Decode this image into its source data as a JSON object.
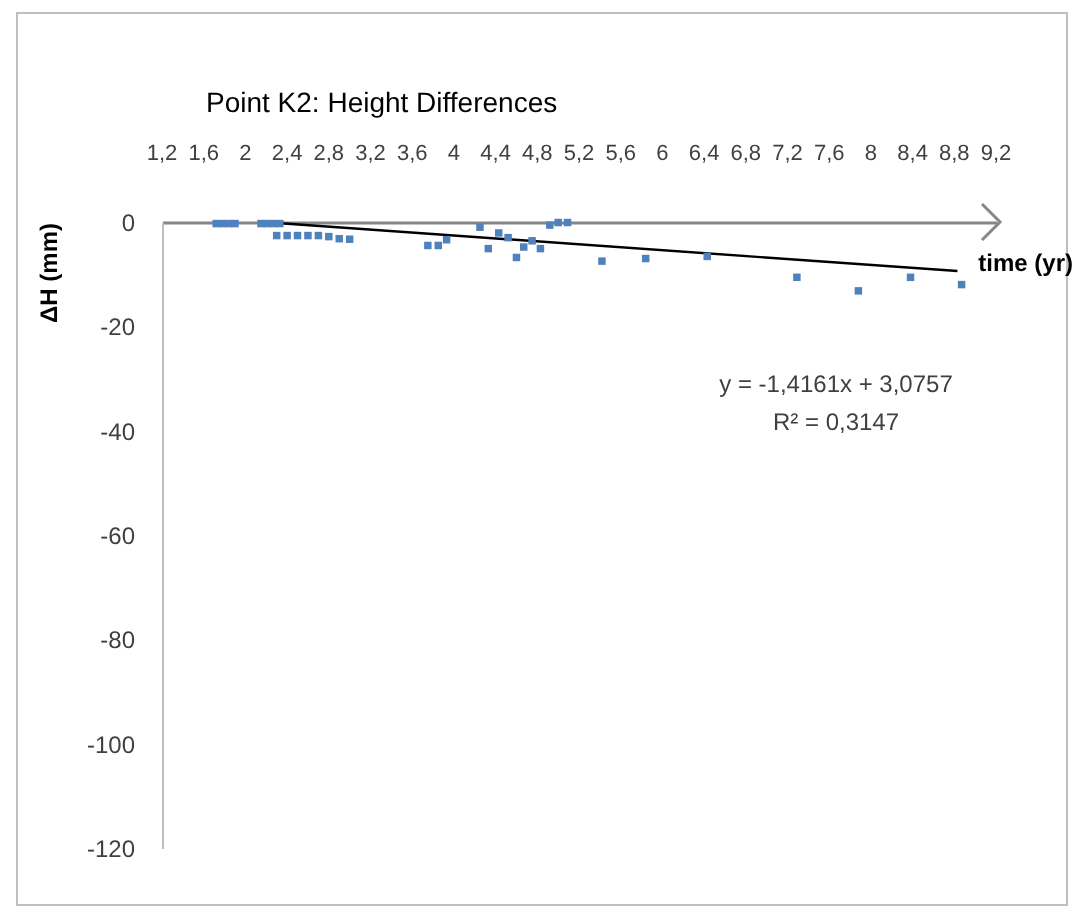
{
  "chart_data": {
    "type": "scatter",
    "title": "Point K2: Height Differences",
    "xlabel": "time (yr)",
    "ylabel": "ΔH (mm)",
    "xlim": [
      1.2,
      9.2
    ],
    "xticks": [
      {
        "value": 1.2,
        "label": "1,2"
      },
      {
        "value": 1.6,
        "label": "1,6"
      },
      2,
      {
        "value": 2.4,
        "label": "2,4"
      },
      {
        "value": 2.8,
        "label": "2,8"
      },
      {
        "value": 3.2,
        "label": "3,2"
      },
      {
        "value": 3.6,
        "label": "3,6"
      },
      4,
      {
        "value": 4.4,
        "label": "4,4"
      },
      {
        "value": 4.8,
        "label": "4,8"
      },
      {
        "value": 5.2,
        "label": "5,2"
      },
      {
        "value": 5.6,
        "label": "5,6"
      },
      6,
      {
        "value": 6.4,
        "label": "6,4"
      },
      {
        "value": 6.8,
        "label": "6,8"
      },
      {
        "value": 7.2,
        "label": "7,2"
      },
      {
        "value": 7.6,
        "label": "7,6"
      },
      8,
      {
        "value": 8.4,
        "label": "8,4"
      },
      {
        "value": 8.8,
        "label": "8,8"
      },
      {
        "value": 9.2,
        "label": "9,2"
      }
    ],
    "ylim": [
      -120,
      0
    ],
    "yticks": [
      -120,
      -100,
      -80,
      -60,
      -40,
      -20,
      0
    ],
    "grid": false,
    "series": [
      {
        "type": "scatter",
        "marker": "square",
        "color": "#4f81bd",
        "x": [
          1.72,
          1.78,
          1.84,
          1.9,
          2.15,
          2.21,
          2.27,
          2.33,
          2.3,
          2.4,
          2.5,
          2.6,
          2.7,
          2.8,
          2.9,
          3.0,
          3.75,
          3.85,
          3.93,
          4.25,
          4.33,
          4.43,
          4.52,
          4.6,
          4.67,
          4.75,
          4.83,
          4.92,
          5.0,
          5.09,
          5.42,
          5.84,
          6.43,
          7.29,
          7.88,
          8.38,
          8.87
        ],
        "values": [
          -0.3,
          -0.3,
          -0.3,
          -0.3,
          -0.3,
          -0.3,
          -0.3,
          -0.3,
          -2.6,
          -2.6,
          -2.6,
          -2.6,
          -2.6,
          -2.8,
          -3.2,
          -3.3,
          -4.5,
          -4.5,
          -3.4,
          -1.0,
          -5.1,
          -2.1,
          -3.0,
          -6.8,
          -4.8,
          -3.6,
          -5.1,
          -0.6,
          -0.1,
          -0.1,
          -7.5,
          -7.0,
          -6.6,
          -10.6,
          -13.2,
          -10.6,
          -12.0
        ]
      },
      {
        "type": "line",
        "color": "#000000",
        "x": [
          2.17,
          8.83
        ],
        "values": [
          0,
          -9.4
        ]
      }
    ],
    "annotations": [
      "y = -1,4161x + 3,0757",
      "R² = 0,3147"
    ]
  }
}
